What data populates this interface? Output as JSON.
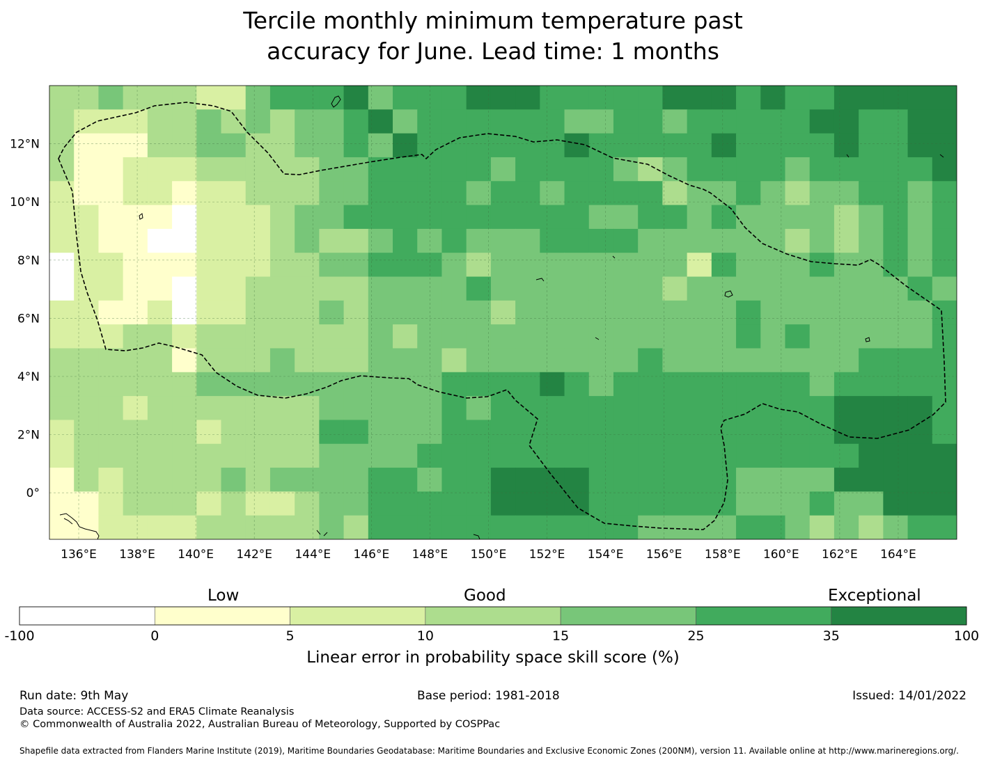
{
  "title_line1": "Tercile monthly minimum temperature past",
  "title_line2": "accuracy for June. Lead time: 1 months",
  "map": {
    "lon_range": [
      135.0,
      166.0
    ],
    "lat_range": [
      -1.6,
      14.0
    ],
    "lon_ticks": [
      "136°E",
      "138°E",
      "140°E",
      "142°E",
      "144°E",
      "146°E",
      "148°E",
      "150°E",
      "152°E",
      "154°E",
      "156°E",
      "158°E",
      "160°E",
      "162°E",
      "164°E"
    ],
    "lat_ticks": [
      "12°N",
      "10°N",
      "8°N",
      "6°N",
      "4°N",
      "2°N",
      "0°"
    ],
    "gridlines": true,
    "boundary": "dashed EEZ outline",
    "land_outline_color": "#000000"
  },
  "colorbar": {
    "categories": [
      "Low",
      "Good",
      "Exceptional"
    ],
    "bounds": [
      "-100",
      "0",
      "5",
      "10",
      "15",
      "25",
      "35",
      "100"
    ],
    "colors": [
      "#ffffff",
      "#ffffcc",
      "#d9f0a3",
      "#addd8e",
      "#78c679",
      "#41ab5d",
      "#238443"
    ],
    "label": "Linear error in probability space skill score (%)"
  },
  "footer": {
    "run_date": "Run date: 9th May",
    "base_period": "Base period: 1981-2018",
    "issued": "Issued: 14/01/2022",
    "data_source": "Data source: ACCESS-S2 and ERA5 Climate Reanalysis",
    "copyright": "© Commonwealth of Australia 2022, Australian Bureau of Meteorology, Supported by COSPPac",
    "shapefile": "Shapefile data extracted from Flanders Marine Institute (2019), Maritime Boundaries Geodatabase: Maritime Boundaries and Exclusive Economic Zones (200NM), version 11. Available online at http://www.marineregions.org/."
  }
}
